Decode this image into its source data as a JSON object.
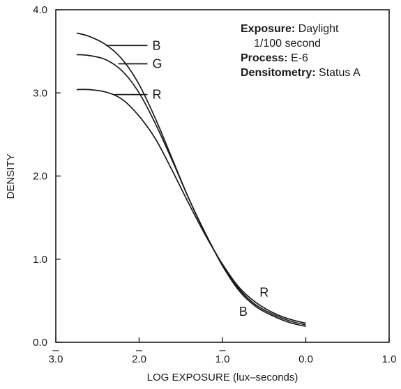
{
  "chart_data": {
    "type": "line",
    "xlabel": "LOG EXPOSURE (lux–seconds)",
    "ylabel": "DENSITY",
    "xlim": [
      -3.0,
      1.0
    ],
    "ylim": [
      0.0,
      4.0
    ],
    "x_ticks": [
      {
        "value": -3.0,
        "label": "3.0",
        "bar": true
      },
      {
        "value": -2.0,
        "label": "2.0",
        "bar": true
      },
      {
        "value": -1.0,
        "label": "1.0",
        "bar": true
      },
      {
        "value": 0.0,
        "label": "0.0",
        "bar": false
      },
      {
        "value": 1.0,
        "label": "1.0",
        "bar": false
      }
    ],
    "y_ticks": [
      {
        "value": 0.0,
        "label": "0.0"
      },
      {
        "value": 1.0,
        "label": "1.0"
      },
      {
        "value": 2.0,
        "label": "2.0"
      },
      {
        "value": 3.0,
        "label": "3.0"
      },
      {
        "value": 4.0,
        "label": "4.0"
      }
    ],
    "grid": false,
    "annotation": {
      "lines": [
        {
          "bold": "Exposure:",
          "text": " Daylight"
        },
        {
          "bold": "",
          "text": "1/100 second"
        },
        {
          "bold": "Process:",
          "text": " E-6"
        },
        {
          "bold": "Densitometry:",
          "text": " Status A"
        }
      ]
    },
    "series": [
      {
        "name": "B",
        "color": "#1a1a1a",
        "x": [
          -2.75,
          -2.6,
          -2.4,
          -2.2,
          -2.0,
          -1.8,
          -1.6,
          -1.4,
          -1.2,
          -1.0,
          -0.8,
          -0.6,
          -0.4,
          -0.2,
          0.0
        ],
        "y": [
          3.72,
          3.68,
          3.58,
          3.4,
          3.1,
          2.68,
          2.2,
          1.72,
          1.3,
          0.92,
          0.62,
          0.43,
          0.32,
          0.24,
          0.19
        ],
        "legend_label": {
          "text": "B",
          "y": 3.57,
          "x_from": -2.4,
          "x_to": -1.9
        },
        "end_label": {
          "text": "B",
          "x": -0.75,
          "y": 0.37
        }
      },
      {
        "name": "G",
        "color": "#1a1a1a",
        "x": [
          -2.75,
          -2.6,
          -2.4,
          -2.2,
          -2.0,
          -1.8,
          -1.6,
          -1.4,
          -1.2,
          -1.0,
          -0.8,
          -0.6,
          -0.4,
          -0.2,
          0.0
        ],
        "y": [
          3.46,
          3.45,
          3.4,
          3.26,
          3.0,
          2.62,
          2.18,
          1.72,
          1.3,
          0.93,
          0.64,
          0.45,
          0.34,
          0.26,
          0.21
        ],
        "legend_label": {
          "text": "G",
          "y": 3.35,
          "x_from": -2.25,
          "x_to": -1.9
        }
      },
      {
        "name": "R",
        "color": "#1a1a1a",
        "x": [
          -2.75,
          -2.6,
          -2.4,
          -2.2,
          -2.0,
          -1.8,
          -1.6,
          -1.4,
          -1.2,
          -1.0,
          -0.8,
          -0.6,
          -0.4,
          -0.2,
          0.0
        ],
        "y": [
          3.04,
          3.04,
          3.01,
          2.92,
          2.72,
          2.44,
          2.06,
          1.66,
          1.28,
          0.94,
          0.66,
          0.48,
          0.36,
          0.28,
          0.23
        ],
        "legend_label": {
          "text": "R",
          "y": 2.98,
          "x_from": -2.3,
          "x_to": -1.9
        },
        "end_label": {
          "text": "R",
          "x": -0.5,
          "y": 0.6
        }
      }
    ]
  }
}
